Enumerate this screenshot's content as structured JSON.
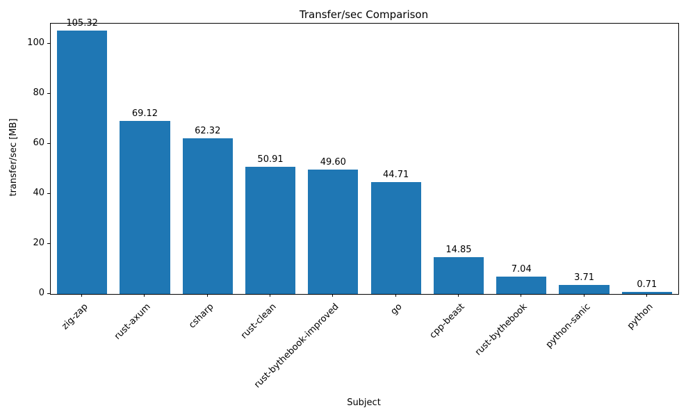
{
  "figure": {
    "title": "Transfer/sec Comparison",
    "xlabel": "Subject",
    "ylabel": "transfer/sec [MB]"
  },
  "chart_data": {
    "type": "bar",
    "title": "Transfer/sec Comparison",
    "xlabel": "Subject",
    "ylabel": "transfer/sec [MB]",
    "categories": [
      "zig-zap",
      "rust-axum",
      "csharp",
      "rust-clean",
      "rust-bythebook-improved",
      "go",
      "cpp-beast",
      "rust-bythebook",
      "python-sanic",
      "python"
    ],
    "values": [
      105.32,
      69.12,
      62.32,
      50.91,
      49.6,
      44.71,
      14.85,
      7.04,
      3.71,
      0.71
    ],
    "value_labels": [
      "105.32",
      "69.12",
      "62.32",
      "50.91",
      "49.60",
      "44.71",
      "14.85",
      "7.04",
      "3.71",
      "0.71"
    ],
    "ylim": [
      0,
      108
    ],
    "yticks": [
      0,
      20,
      40,
      60,
      80,
      100
    ],
    "bar_color": "#1f77b4",
    "grid": false,
    "legend": "none",
    "bar_width_fraction": 0.8
  }
}
